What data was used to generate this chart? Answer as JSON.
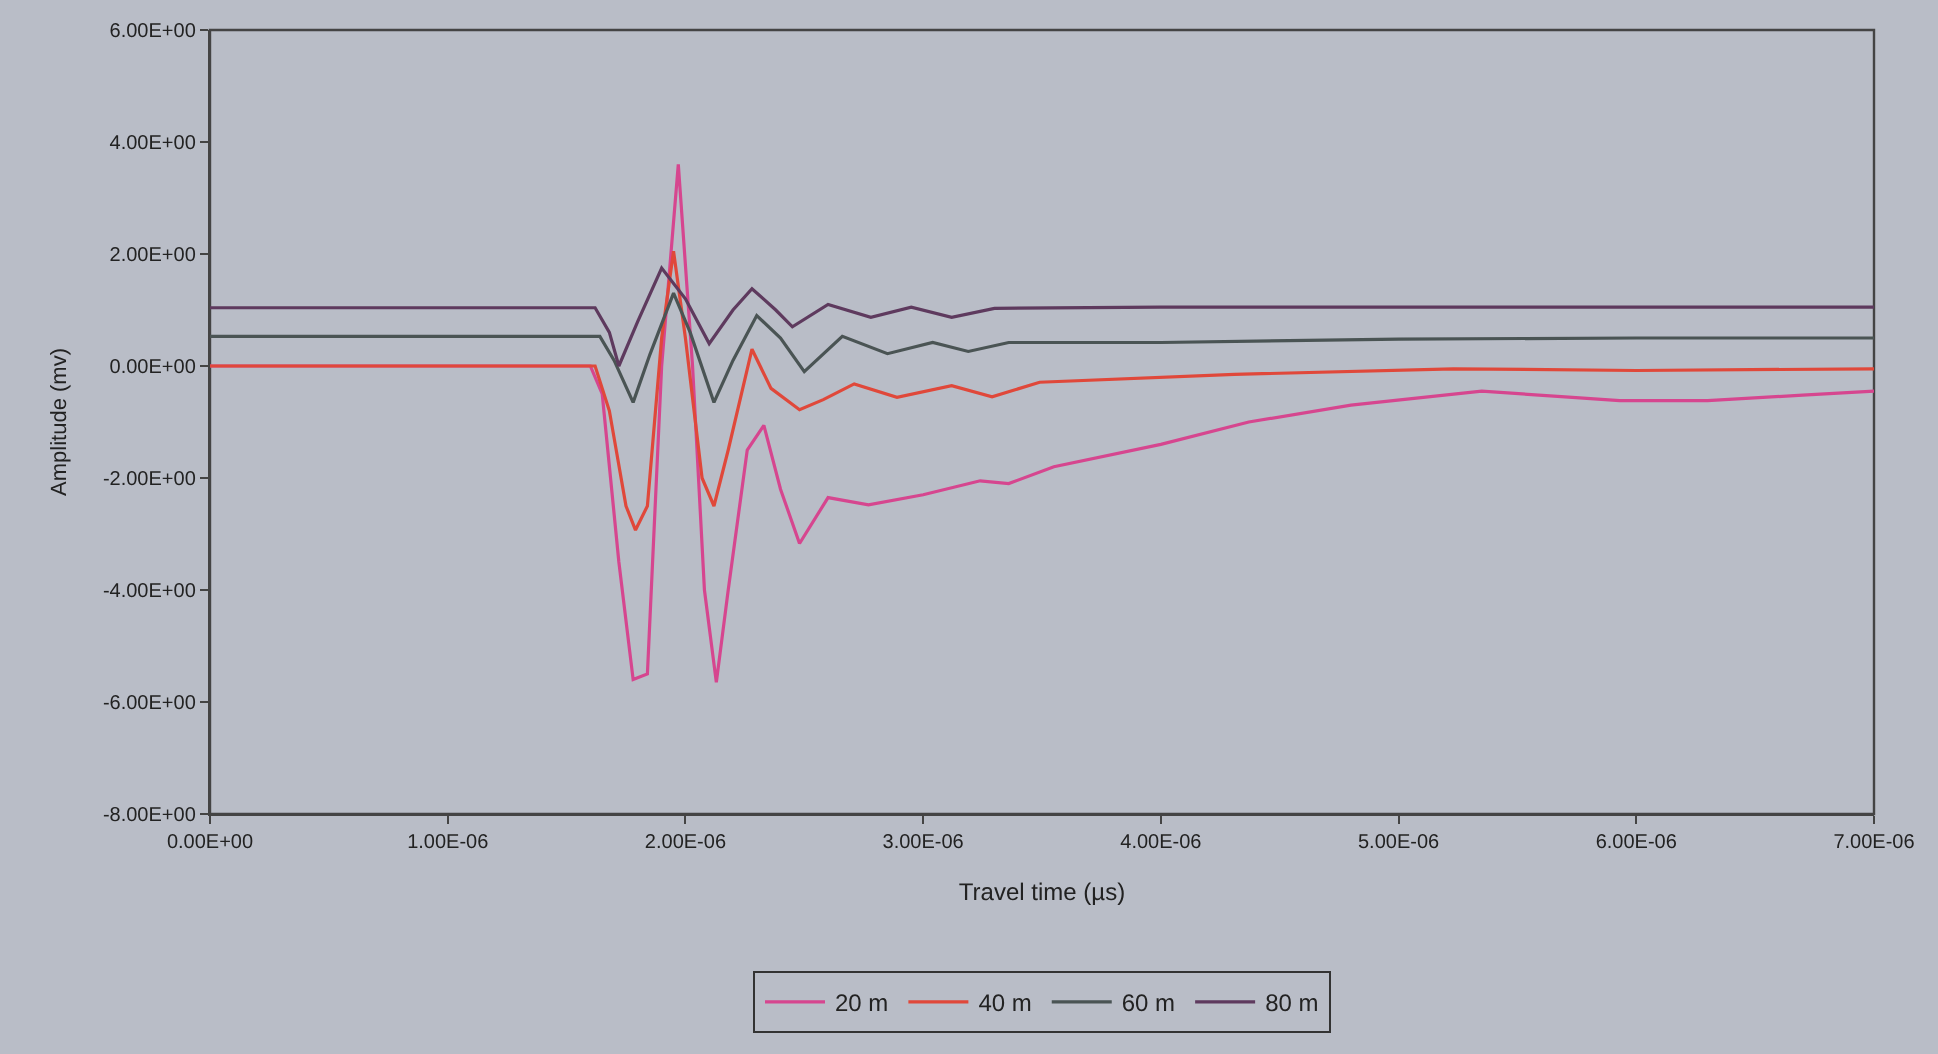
{
  "chart_data": {
    "type": "line",
    "xlabel": "Travel time (µs)",
    "ylabel": "Amplitude (mv)",
    "xlim": [
      0,
      7e-06
    ],
    "ylim": [
      -8,
      6
    ],
    "xticks": [
      {
        "value": 0,
        "label": "0.00E+00"
      },
      {
        "value": 1e-06,
        "label": "1.00E-06"
      },
      {
        "value": 2e-06,
        "label": "2.00E-06"
      },
      {
        "value": 3e-06,
        "label": "3.00E-06"
      },
      {
        "value": 4e-06,
        "label": "4.00E-06"
      },
      {
        "value": 5e-06,
        "label": "5.00E-06"
      },
      {
        "value": 6e-06,
        "label": "6.00E-06"
      },
      {
        "value": 7e-06,
        "label": "7.00E-06"
      }
    ],
    "yticks": [
      {
        "value": -8,
        "label": "-8.00E+00"
      },
      {
        "value": -6,
        "label": "-6.00E+00"
      },
      {
        "value": -4,
        "label": "-4.00E+00"
      },
      {
        "value": -2,
        "label": "-2.00E+00"
      },
      {
        "value": 0,
        "label": "0.00E+00"
      },
      {
        "value": 2,
        "label": "2.00E+00"
      },
      {
        "value": 4,
        "label": "4.00E+00"
      },
      {
        "value": 6,
        "label": "6.00E+00"
      }
    ],
    "grid": false,
    "legend": "bottom",
    "marker": "none",
    "line_style": "solid",
    "series": [
      {
        "name": "20 m",
        "color": "#d6468f",
        "x": [
          0,
          1.6e-06,
          1.65e-06,
          1.72e-06,
          1.78e-06,
          1.84e-06,
          1.9e-06,
          1.97e-06,
          2.03e-06,
          2.08e-06,
          2.13e-06,
          2.18e-06,
          2.26e-06,
          2.33e-06,
          2.4e-06,
          2.48e-06,
          2.6e-06,
          2.77e-06,
          3e-06,
          3.24e-06,
          3.36e-06,
          3.55e-06,
          4e-06,
          4.37e-06,
          4.8e-06,
          5.35e-06,
          5.7e-06,
          5.93e-06,
          6.3e-06,
          6.7e-06,
          7e-06
        ],
        "values": [
          0,
          0,
          -0.5,
          -3.5,
          -5.6,
          -5.5,
          0,
          3.6,
          0,
          -4,
          -5.65,
          -4,
          -1.5,
          -1.06,
          -2.2,
          -3.17,
          -2.35,
          -2.48,
          -2.3,
          -2.05,
          -2.1,
          -1.8,
          -1.4,
          -1.0,
          -0.7,
          -0.45,
          -0.55,
          -0.62,
          -0.62,
          -0.52,
          -0.45
        ]
      },
      {
        "name": "40 m",
        "color": "#e0483a",
        "x": [
          0,
          1.62e-06,
          1.68e-06,
          1.75e-06,
          1.79e-06,
          1.84e-06,
          1.9e-06,
          1.95e-06,
          2e-06,
          2.07e-06,
          2.12e-06,
          2.18e-06,
          2.28e-06,
          2.36e-06,
          2.48e-06,
          2.58e-06,
          2.71e-06,
          2.89e-06,
          3.12e-06,
          3.29e-06,
          3.49e-06,
          4.31e-06,
          5.23e-06,
          6e-06,
          7e-06
        ],
        "values": [
          0,
          0,
          -0.8,
          -2.5,
          -2.93,
          -2.5,
          0.5,
          2.05,
          0.5,
          -2.0,
          -2.5,
          -1.5,
          0.3,
          -0.4,
          -0.78,
          -0.6,
          -0.32,
          -0.56,
          -0.35,
          -0.55,
          -0.29,
          -0.15,
          -0.05,
          -0.08,
          -0.05
        ]
      },
      {
        "name": "60 m",
        "color": "#4a5454",
        "x": [
          0,
          1.64e-06,
          1.7e-06,
          1.78e-06,
          1.85e-06,
          1.95e-06,
          2.02e-06,
          2.12e-06,
          2.2e-06,
          2.3e-06,
          2.4e-06,
          2.5e-06,
          2.66e-06,
          2.85e-06,
          3.04e-06,
          3.19e-06,
          3.36e-06,
          4e-06,
          5e-06,
          6e-06,
          7e-06
        ],
        "values": [
          0.53,
          0.53,
          0.1,
          -0.65,
          0.2,
          1.3,
          0.6,
          -0.65,
          0.1,
          0.9,
          0.5,
          -0.1,
          0.53,
          0.22,
          0.42,
          0.26,
          0.42,
          0.42,
          0.48,
          0.5,
          0.5
        ]
      },
      {
        "name": "80 m",
        "color": "#5e3a5e",
        "x": [
          0,
          1.62e-06,
          1.68e-06,
          1.72e-06,
          1.8e-06,
          1.9e-06,
          2e-06,
          2.1e-06,
          2.2e-06,
          2.28e-06,
          2.38e-06,
          2.45e-06,
          2.6e-06,
          2.78e-06,
          2.95e-06,
          3.12e-06,
          3.3e-06,
          4e-06,
          5e-06,
          7e-06
        ],
        "values": [
          1.04,
          1.04,
          0.6,
          0.0,
          0.8,
          1.75,
          1.2,
          0.4,
          1.0,
          1.38,
          1.0,
          0.7,
          1.1,
          0.87,
          1.05,
          0.87,
          1.03,
          1.05,
          1.05,
          1.05
        ]
      }
    ]
  }
}
